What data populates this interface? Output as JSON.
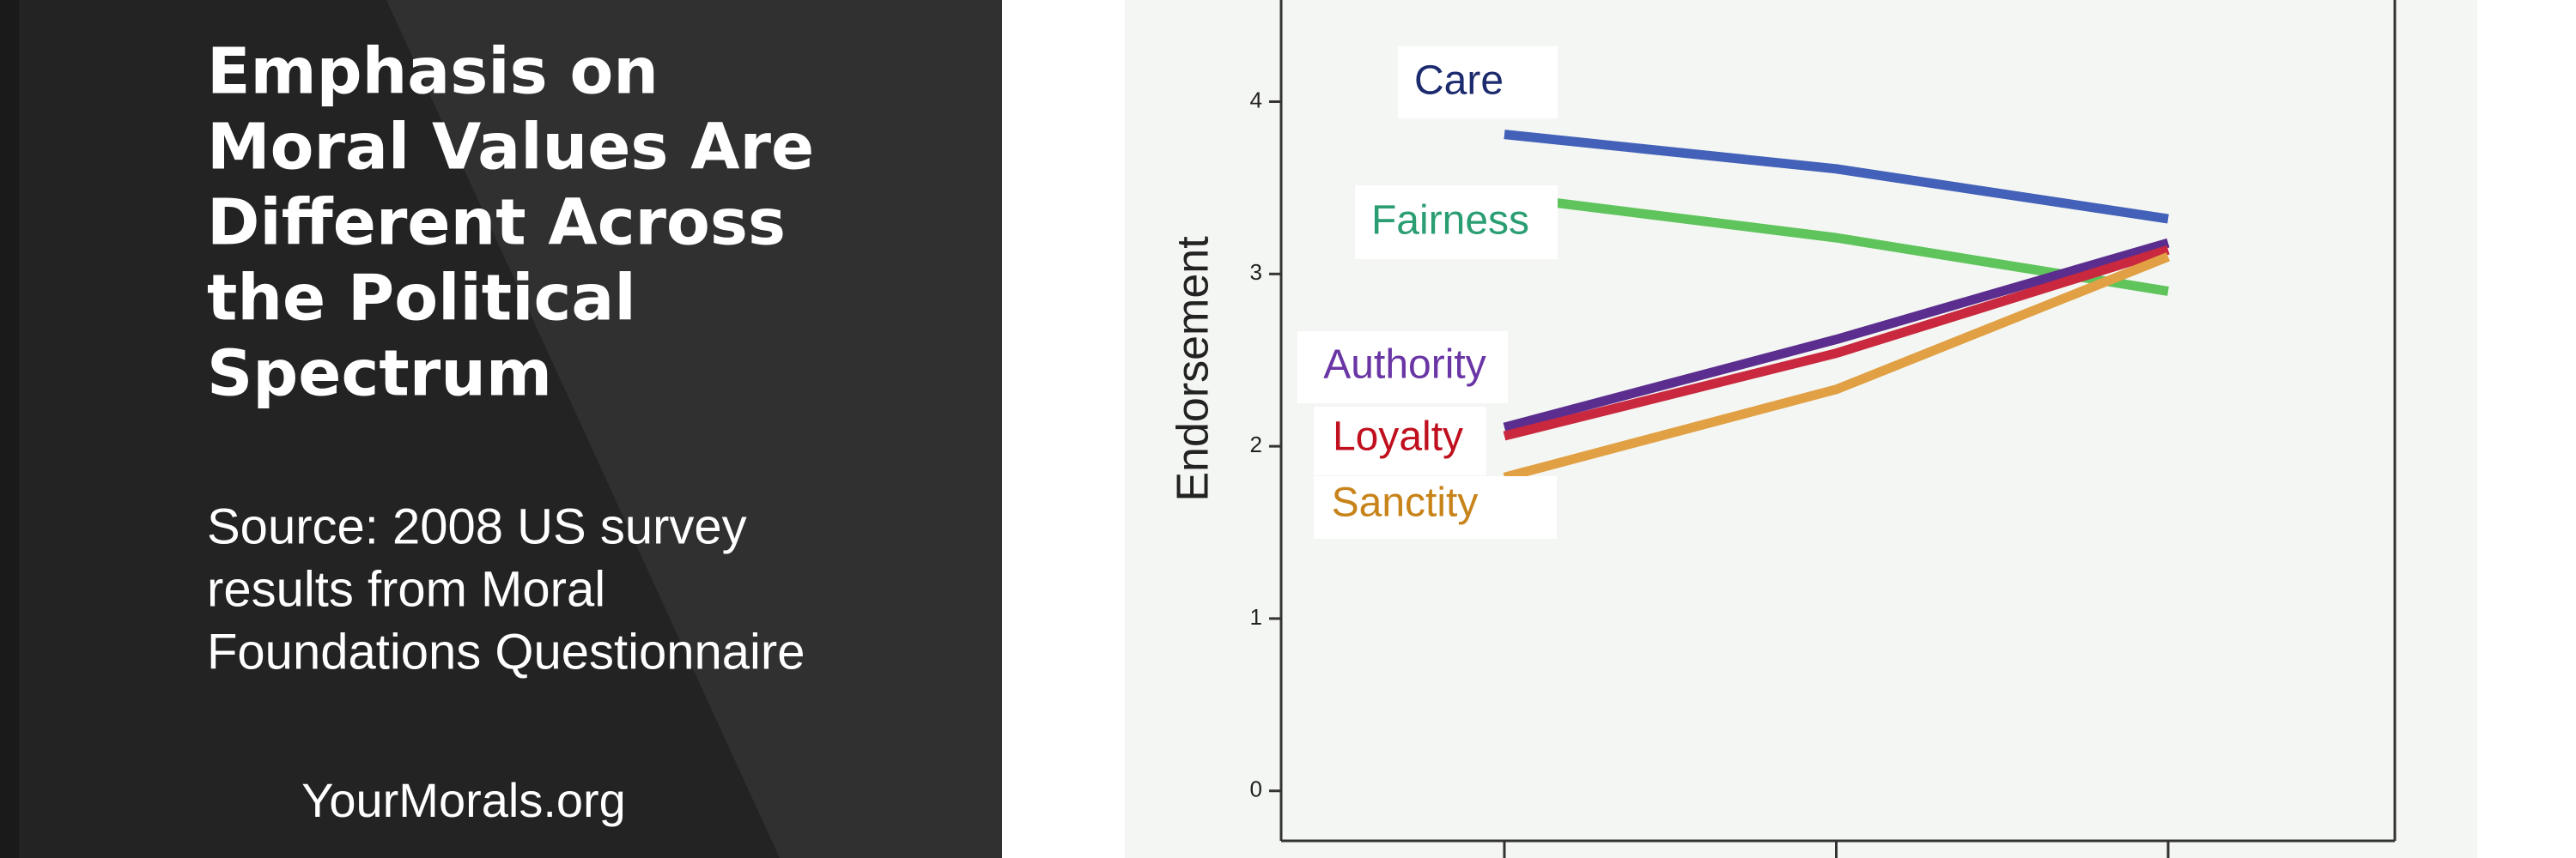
{
  "title_lines": [
    "Emphasis on",
    "Moral Values Are",
    "Different Across",
    "the Political",
    "Spectrum"
  ],
  "source_lines": [
    "Source: 2008 US survey",
    "results from Moral",
    "Foundations Questionnaire"
  ],
  "site": "YourMorals.org",
  "chart_data": {
    "type": "line",
    "y_label": "Endorsement",
    "categories": [
      null,
      null,
      null
    ],
    "ylim": [
      -0.29,
      4.59
    ],
    "yticks": [
      0,
      1,
      2,
      3,
      4
    ],
    "series": [
      {
        "name": "Care",
        "color": "#4361b8",
        "label_color": "#1c2a6e",
        "values": [
          3.81,
          3.61,
          3.32
        ]
      },
      {
        "name": "Fairness",
        "color": "#5fc45c",
        "label_color": "#2a9e72",
        "values": [
          3.45,
          3.21,
          2.9
        ]
      },
      {
        "name": "Authority",
        "color": "#5b2d8e",
        "label_color": "#6a35a5",
        "values": [
          2.11,
          2.62,
          3.18
        ]
      },
      {
        "name": "Loyalty",
        "color": "#c9283e",
        "label_color": "#c0101f",
        "values": [
          2.06,
          2.54,
          3.14
        ]
      },
      {
        "name": "Sanctity",
        "color": "#e1a043",
        "label_color": "#c8841a",
        "values": [
          1.82,
          2.33,
          3.1
        ]
      }
    ]
  }
}
